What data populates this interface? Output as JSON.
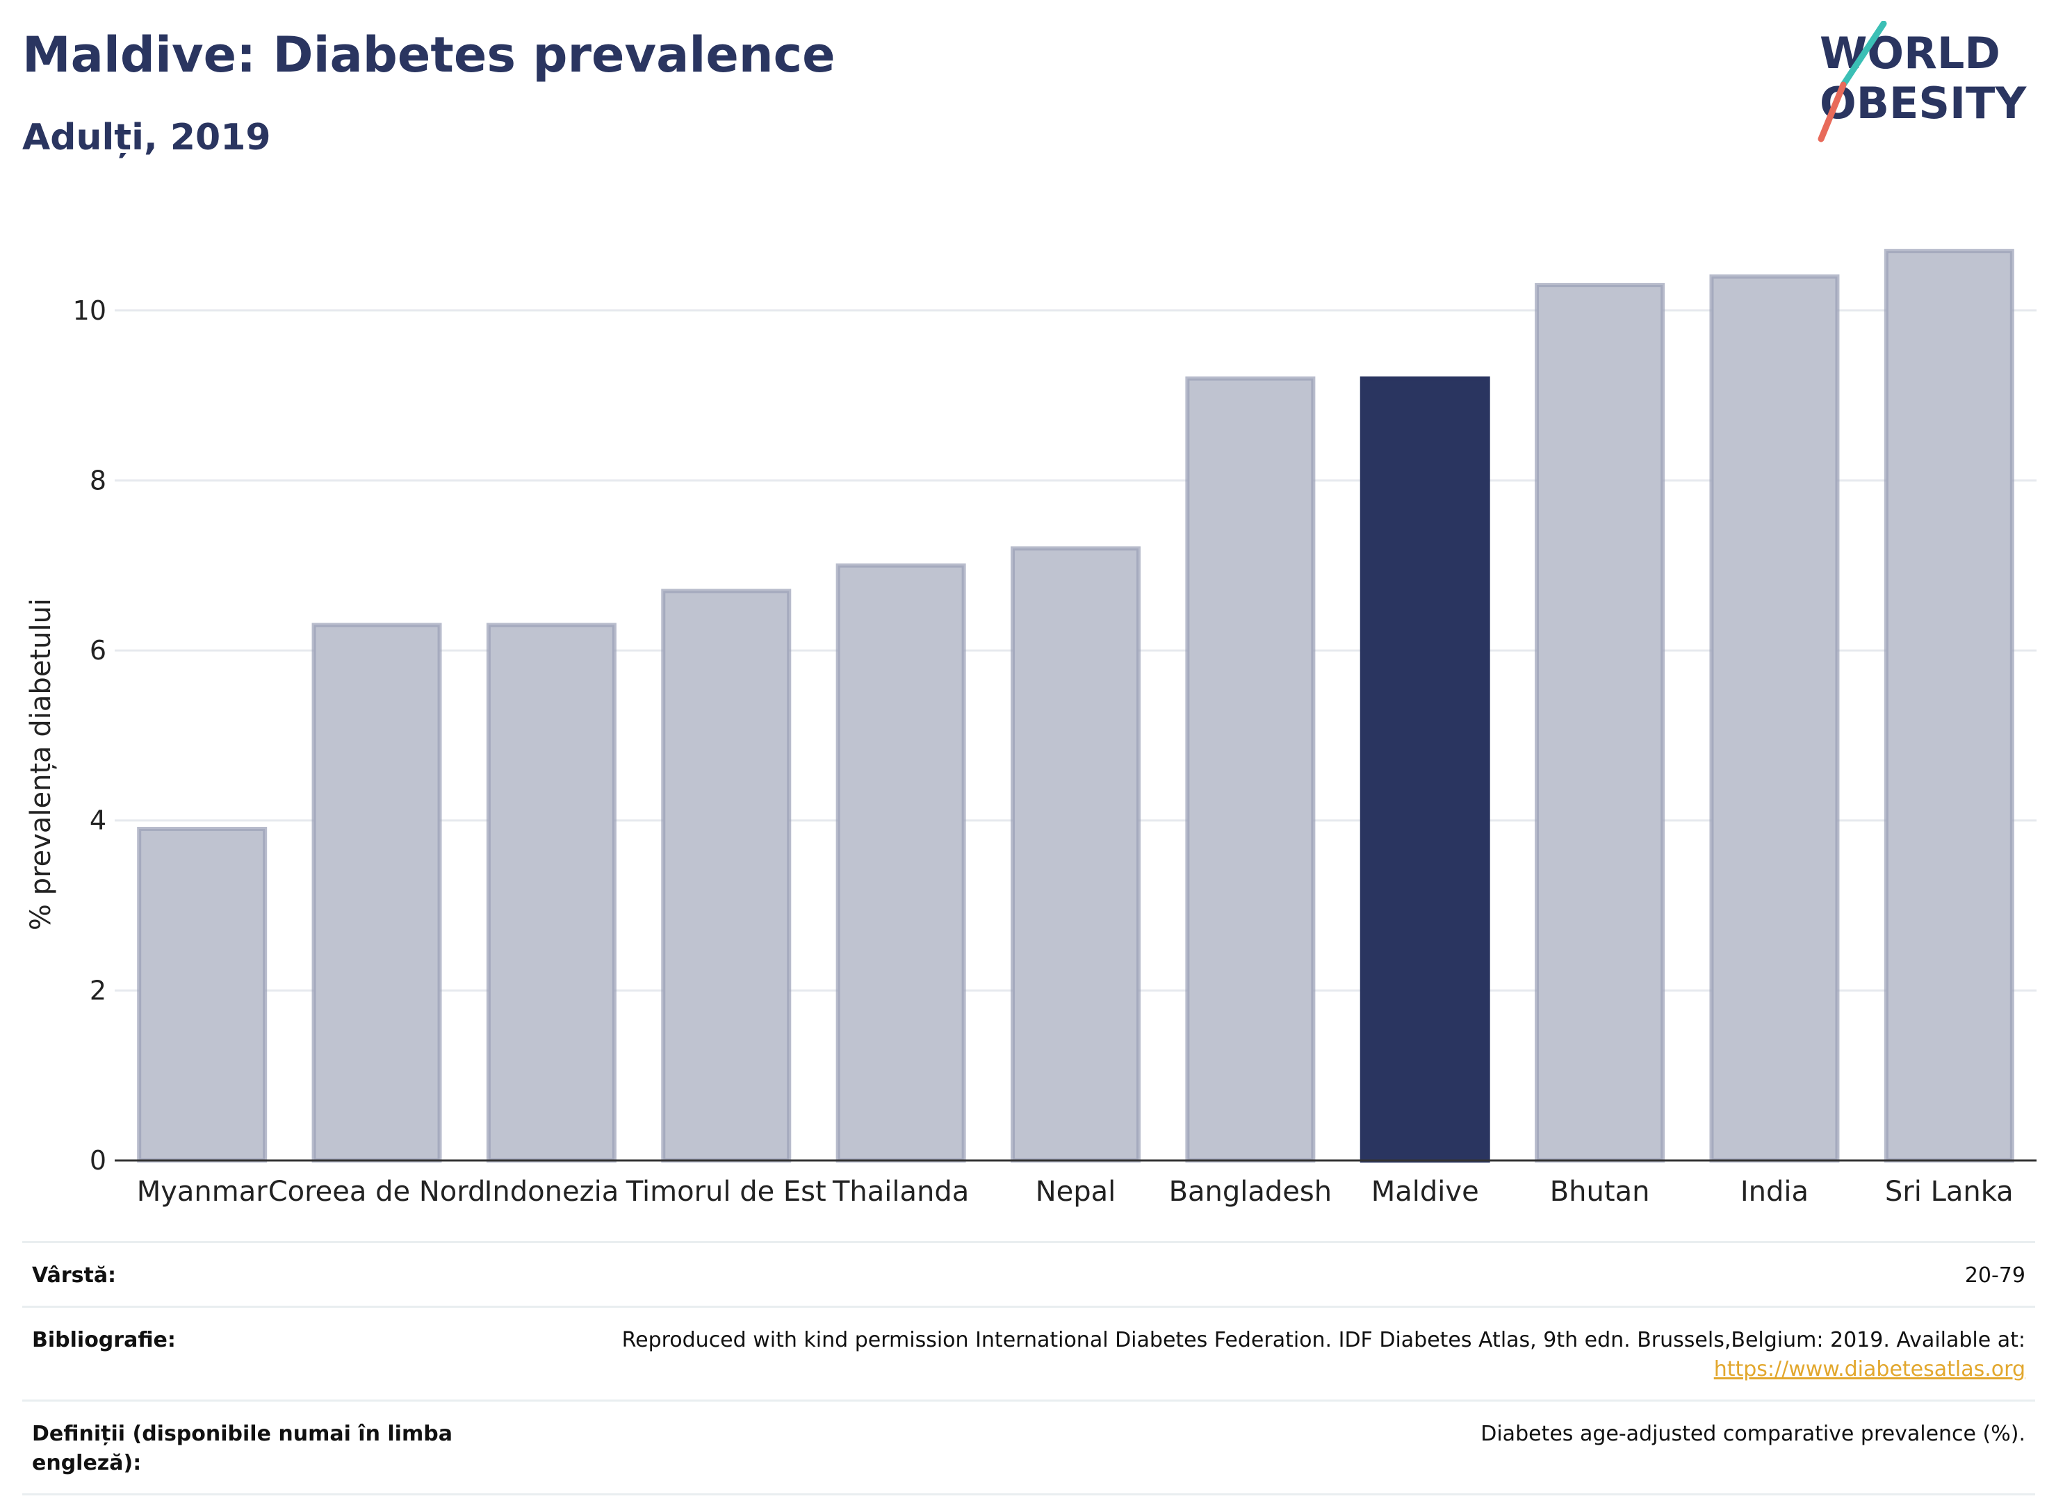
{
  "header": {
    "title": "Maldive: Diabetes prevalence",
    "subtitle": "Adulți, 2019"
  },
  "logo": {
    "line1": "WORLD",
    "line2": "OBESITY"
  },
  "chart_data": {
    "type": "bar",
    "categories": [
      "Myanmar",
      "Coreea de Nord",
      "Indonezia",
      "Timorul de Est",
      "Thailanda",
      "Nepal",
      "Bangladesh",
      "Maldive",
      "Bhutan",
      "India",
      "Sri Lanka"
    ],
    "values": [
      3.9,
      6.3,
      6.3,
      6.7,
      7.0,
      7.2,
      9.2,
      9.2,
      10.3,
      10.4,
      10.7
    ],
    "highlight": "Maldive",
    "title": "Maldive: Diabetes prevalence",
    "subtitle": "Adulți, 2019",
    "xlabel": "",
    "ylabel": "% prevalența diabetului",
    "ylim": [
      0,
      11.2
    ],
    "yticks": [
      0,
      2,
      4,
      6,
      8,
      10
    ],
    "grid": true,
    "colors": {
      "bar": "#bfc3d0",
      "bar_edge": "#9aa0b6",
      "highlight": "#2a3560",
      "grid": "#e6e9ee",
      "axis": "#333333"
    }
  },
  "info": {
    "age_label": "Vârstă:",
    "age_value": "20-79",
    "biblio_label": "Bibliografie:",
    "biblio_text": "Reproduced with kind permission International Diabetes Federation. IDF Diabetes Atlas, 9th edn. Brussels,Belgium: 2019. Available at:",
    "biblio_link": "https://www.diabetesatlas.org",
    "def_label": "Definiții (disponibile numai în limba engleză):",
    "def_value": "Diabetes age-adjusted comparative prevalence (%)."
  }
}
